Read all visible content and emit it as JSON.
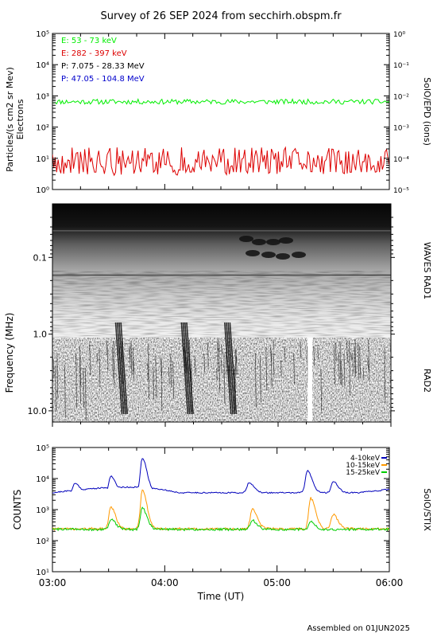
{
  "title": "Survey of 26 SEP 2024 from secchirh.obspm.fr",
  "footer": "Assembled on 01JUN2025",
  "colors": {
    "electrons_low": "#00ee00",
    "electrons_high": "#dd0000",
    "protons_low": "#000000",
    "protons_high": "#0000cc",
    "stix_low": "#0000bb",
    "stix_mid": "#ff9900",
    "stix_high": "#00cc00"
  },
  "chart_data": [
    {
      "type": "line",
      "title": "",
      "ylabel": "Particles/(s cm2 sr Mev)",
      "ylabel2": "Electrons",
      "right_label": "SolO/EPD (ions)",
      "yscale": "log",
      "ylim": [
        1,
        100000
      ],
      "y_ticks": [
        "10⁰",
        "10¹",
        "10²",
        "10³",
        "10⁴",
        "10⁵"
      ],
      "y2lim": [
        1e-05,
        1
      ],
      "y2_ticks": [
        "10⁻⁵",
        "10⁻⁴",
        "10⁻³",
        "10⁻²",
        "10⁻¹",
        "10⁰"
      ],
      "xlim": [
        "03:00",
        "06:00"
      ],
      "legend_position": "top-left",
      "series": [
        {
          "name": "E: 53 - 73 keV",
          "level": 650,
          "spread": 0.08
        },
        {
          "name": "E: 282 - 397 keV",
          "level": 8,
          "spread": 0.45
        },
        {
          "name": "P: 7.075 - 28.33 MeV"
        },
        {
          "name": "P: 47.05 - 104.8 MeV"
        }
      ]
    },
    {
      "type": "heatmap",
      "title": "",
      "ylabel": "Frequency (MHz)",
      "yscale": "log",
      "ylim": [
        0.02,
        14
      ],
      "y_ticks": [
        "0.1",
        "1.0",
        "10.0"
      ],
      "xlim": [
        "03:00",
        "06:00"
      ],
      "right_labels": [
        "WAVES RAD1",
        "RAD2"
      ],
      "bursts": [
        {
          "time": "03:35",
          "label": "type III"
        },
        {
          "time": "04:10",
          "label": "type III"
        },
        {
          "time": "04:33",
          "label": "type III"
        }
      ],
      "data_gap": {
        "time": "05:17"
      }
    },
    {
      "type": "line",
      "title": "",
      "ylabel": "COUNTS",
      "right_label": "SolO/STIX",
      "yscale": "log",
      "ylim": [
        10,
        100000
      ],
      "y_ticks": [
        "10¹",
        "10²",
        "10³",
        "10⁴",
        "10⁵"
      ],
      "xlabel": "Time (UT)",
      "x_ticks": [
        "03:00",
        "04:00",
        "05:00",
        "06:00"
      ],
      "legend_position": "top-right",
      "series": [
        {
          "name": "4-10keV",
          "base": 3500,
          "peaks": [
            [
              3.2,
              7000
            ],
            [
              3.52,
              12000
            ],
            [
              3.8,
              45000
            ],
            [
              4.75,
              7500
            ],
            [
              5.27,
              18000
            ],
            [
              5.5,
              8000
            ]
          ]
        },
        {
          "name": "10-15keV",
          "base": 240,
          "peaks": [
            [
              3.52,
              1200
            ],
            [
              3.8,
              4000
            ],
            [
              4.78,
              1100
            ],
            [
              5.3,
              2300
            ],
            [
              5.5,
              700
            ]
          ]
        },
        {
          "name": "15-25keV",
          "base": 230,
          "peaks": [
            [
              3.52,
              500
            ],
            [
              3.8,
              1100
            ],
            [
              4.78,
              450
            ],
            [
              5.3,
              400
            ]
          ]
        }
      ]
    }
  ]
}
